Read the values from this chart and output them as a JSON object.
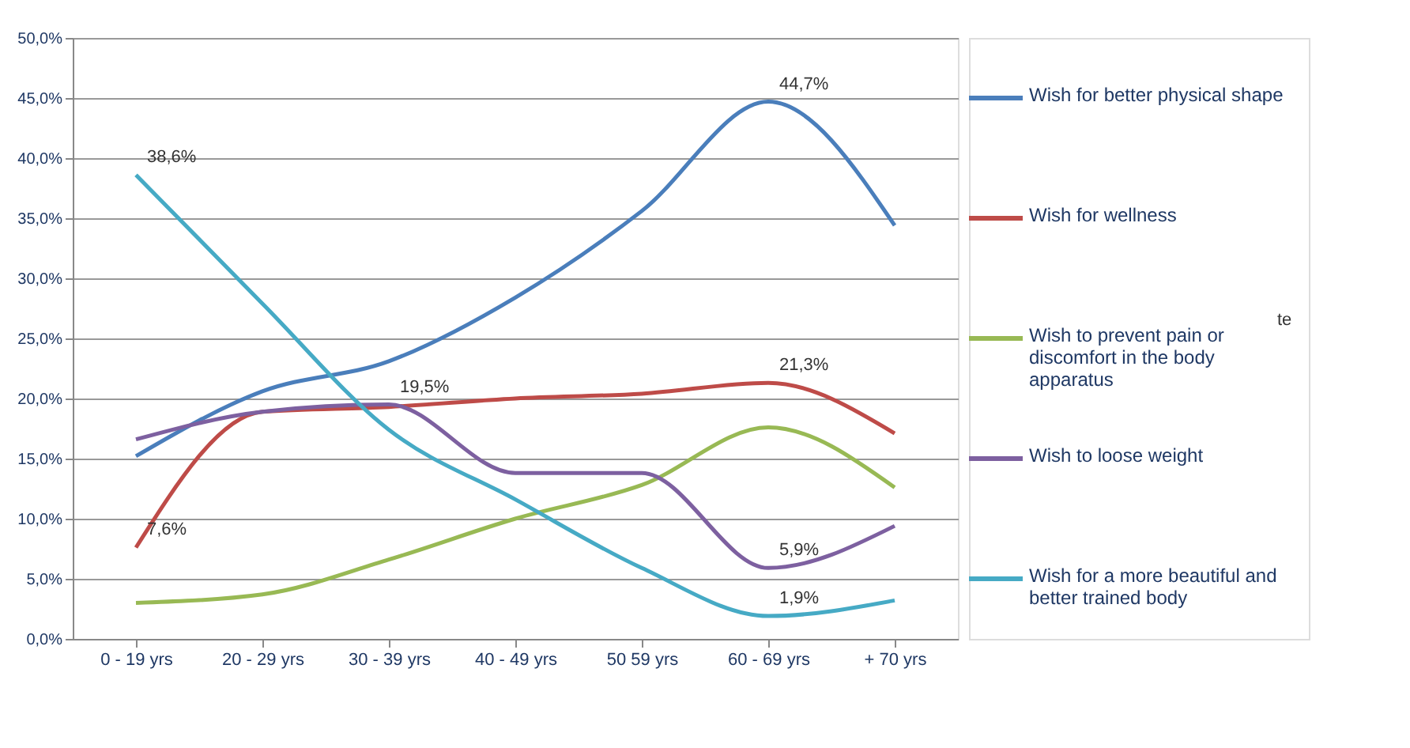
{
  "chart_data": {
    "type": "line",
    "categories": [
      "0 - 19 yrs",
      "20 - 29 yrs",
      "30 - 39 yrs",
      "40 - 49 yrs",
      "50 59 yrs",
      "60 - 69 yrs",
      "+ 70 yrs"
    ],
    "series": [
      {
        "name": "Wish for better physical shape",
        "color": "#4a7ebb",
        "values": [
          15.2,
          20.6,
          23.1,
          28.4,
          35.6,
          44.7,
          34.4
        ],
        "value_labels": [
          null,
          null,
          null,
          null,
          null,
          "44,7%",
          null
        ]
      },
      {
        "name": "Wish for wellness",
        "color": "#be4b48",
        "values": [
          7.6,
          18.9,
          19.3,
          20.0,
          20.4,
          21.3,
          17.1
        ],
        "value_labels": [
          "7,6%",
          null,
          null,
          null,
          null,
          "21,3%",
          null
        ]
      },
      {
        "name": "Wish to prevent pain or\ndiscomfort in the body\napparatus",
        "color": "#98b954",
        "values": [
          3.0,
          3.7,
          6.6,
          10.0,
          12.8,
          17.6,
          12.6
        ]
      },
      {
        "name": "Wish to loose weight",
        "color": "#7d60a0",
        "values": [
          16.6,
          18.9,
          19.5,
          13.8,
          13.8,
          5.9,
          9.4
        ],
        "value_labels": [
          null,
          null,
          "19,5%",
          null,
          null,
          "5,9%",
          null
        ]
      },
      {
        "name": "Wish for a more beautiful and\nbetter trained body",
        "color": "#46aac5",
        "values": [
          38.6,
          27.9,
          17.4,
          11.6,
          5.9,
          1.9,
          3.2
        ],
        "value_labels": [
          "38,6%",
          null,
          null,
          null,
          null,
          "1,9%",
          null
        ]
      }
    ],
    "ylim": [
      0,
      50
    ],
    "yticks": [
      {
        "value": 0,
        "label": "0,0%"
      },
      {
        "value": 5,
        "label": "5,0%"
      },
      {
        "value": 10,
        "label": "10,0%"
      },
      {
        "value": 15,
        "label": "15,0%"
      },
      {
        "value": 20,
        "label": "20,0%"
      },
      {
        "value": 25,
        "label": "25,0%"
      },
      {
        "value": 30,
        "label": "30,0%"
      },
      {
        "value": 35,
        "label": "35,0%"
      },
      {
        "value": 40,
        "label": "40,0%"
      },
      {
        "value": 45,
        "label": "45,0%"
      },
      {
        "value": 50,
        "label": "50,0%"
      }
    ],
    "grid": "y",
    "legend": "right",
    "line_style": "solid",
    "marker": "none",
    "annotations": [
      "te"
    ]
  }
}
